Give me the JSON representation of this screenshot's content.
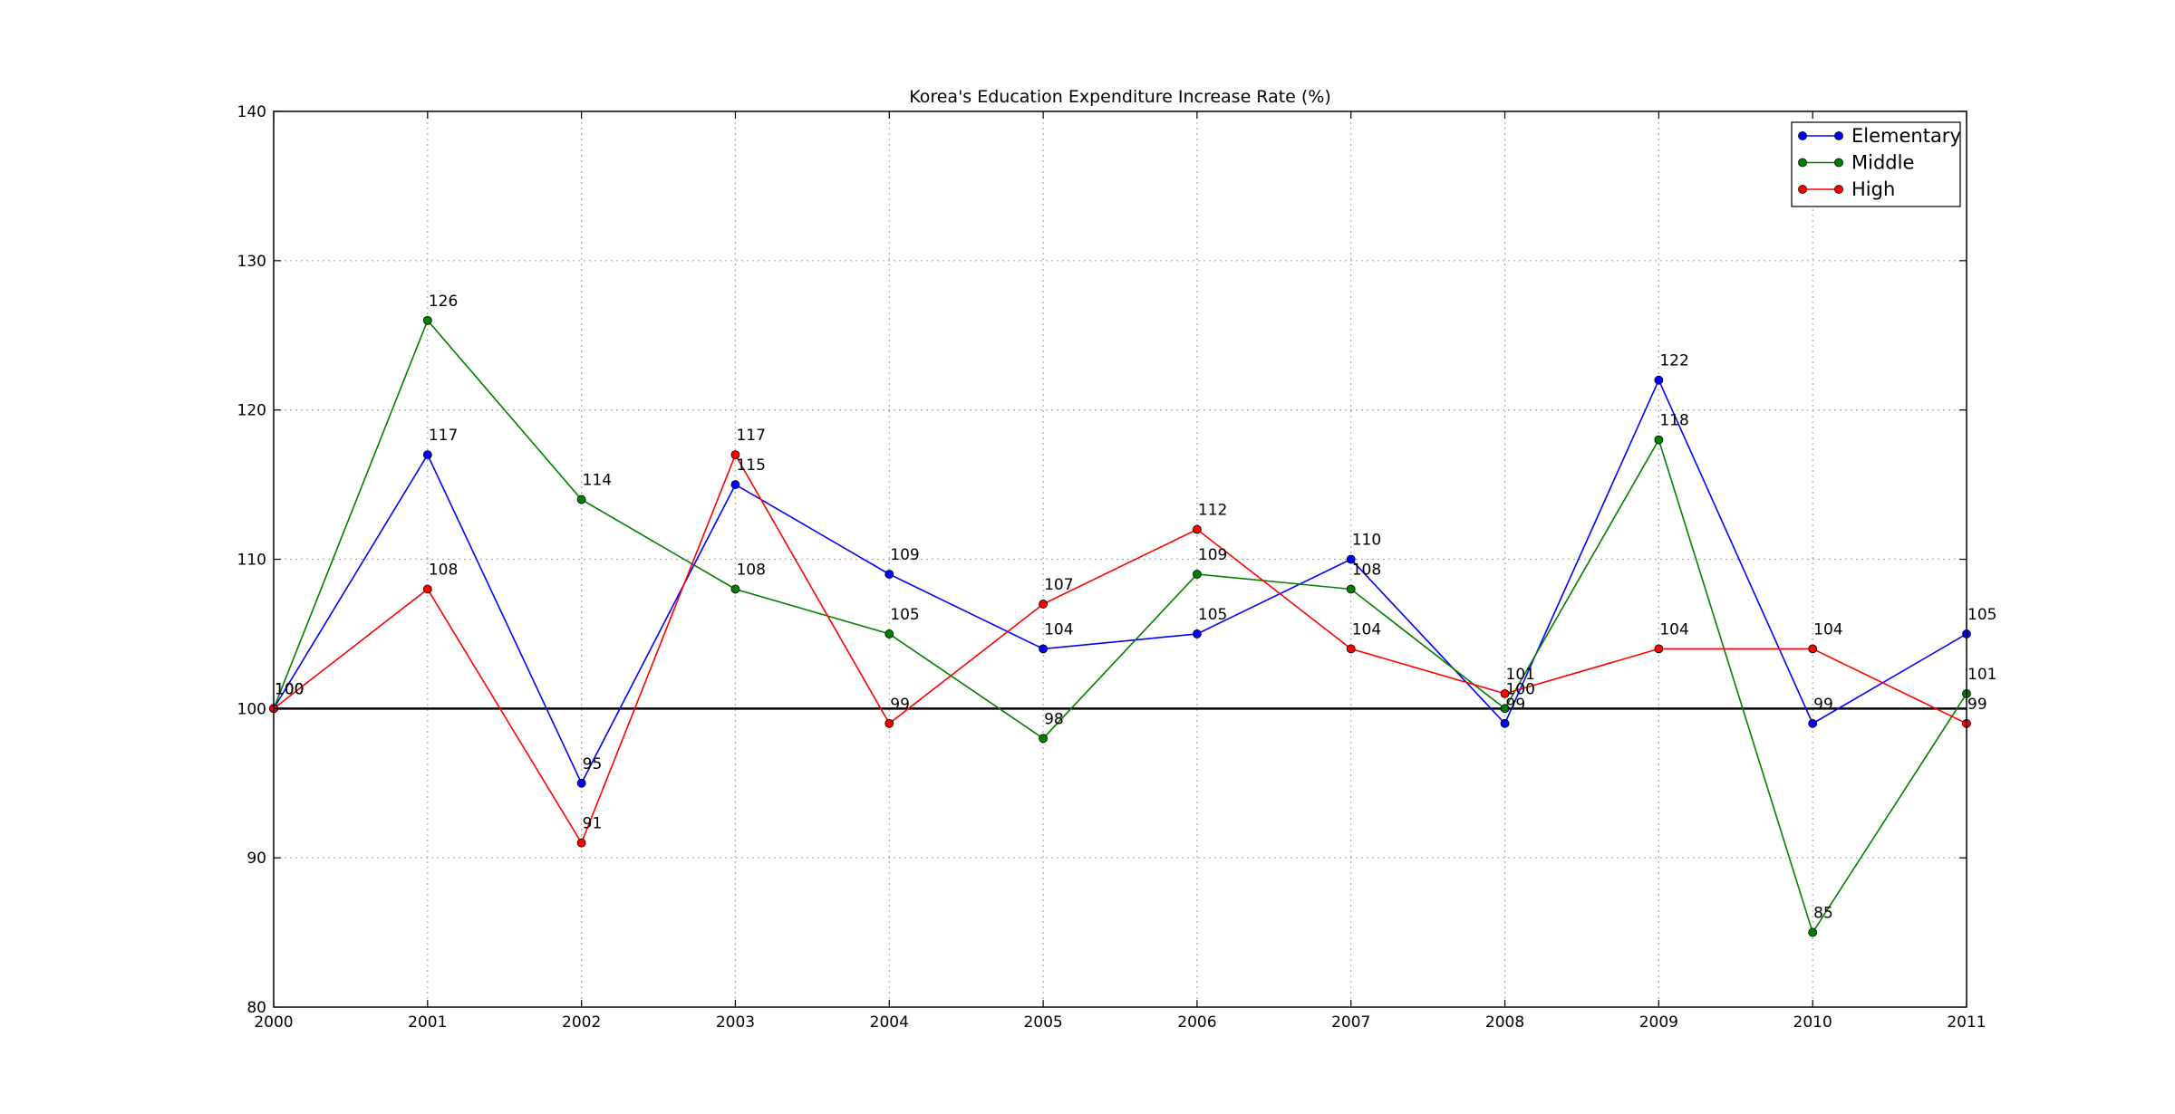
{
  "chart_data": {
    "type": "line",
    "title": "Korea's Education Expenditure Increase Rate (%)",
    "xlabel": "",
    "ylabel": "",
    "x": [
      2000,
      2001,
      2002,
      2003,
      2004,
      2005,
      2006,
      2007,
      2008,
      2009,
      2010,
      2011
    ],
    "xticks": [
      "2000",
      "2001",
      "2002",
      "2003",
      "2004",
      "2005",
      "2006",
      "2007",
      "2008",
      "2009",
      "2010",
      "2011"
    ],
    "ylim": [
      80,
      140
    ],
    "yticks": [
      "80",
      "90",
      "100",
      "110",
      "120",
      "130",
      "140"
    ],
    "grid": true,
    "legend_position": "top-right",
    "reference_line": 100,
    "series": [
      {
        "name": "Elementary",
        "color": "#0000ff",
        "values": [
          100,
          117,
          95,
          115,
          109,
          104,
          105,
          110,
          99,
          122,
          99,
          105
        ]
      },
      {
        "name": "Middle",
        "color": "#007f00",
        "values": [
          100,
          126,
          114,
          108,
          105,
          98,
          109,
          108,
          100,
          118,
          85,
          101
        ]
      },
      {
        "name": "High",
        "color": "#ff0000",
        "values": [
          100,
          108,
          91,
          117,
          99,
          107,
          112,
          104,
          101,
          104,
          104,
          99
        ]
      }
    ]
  }
}
